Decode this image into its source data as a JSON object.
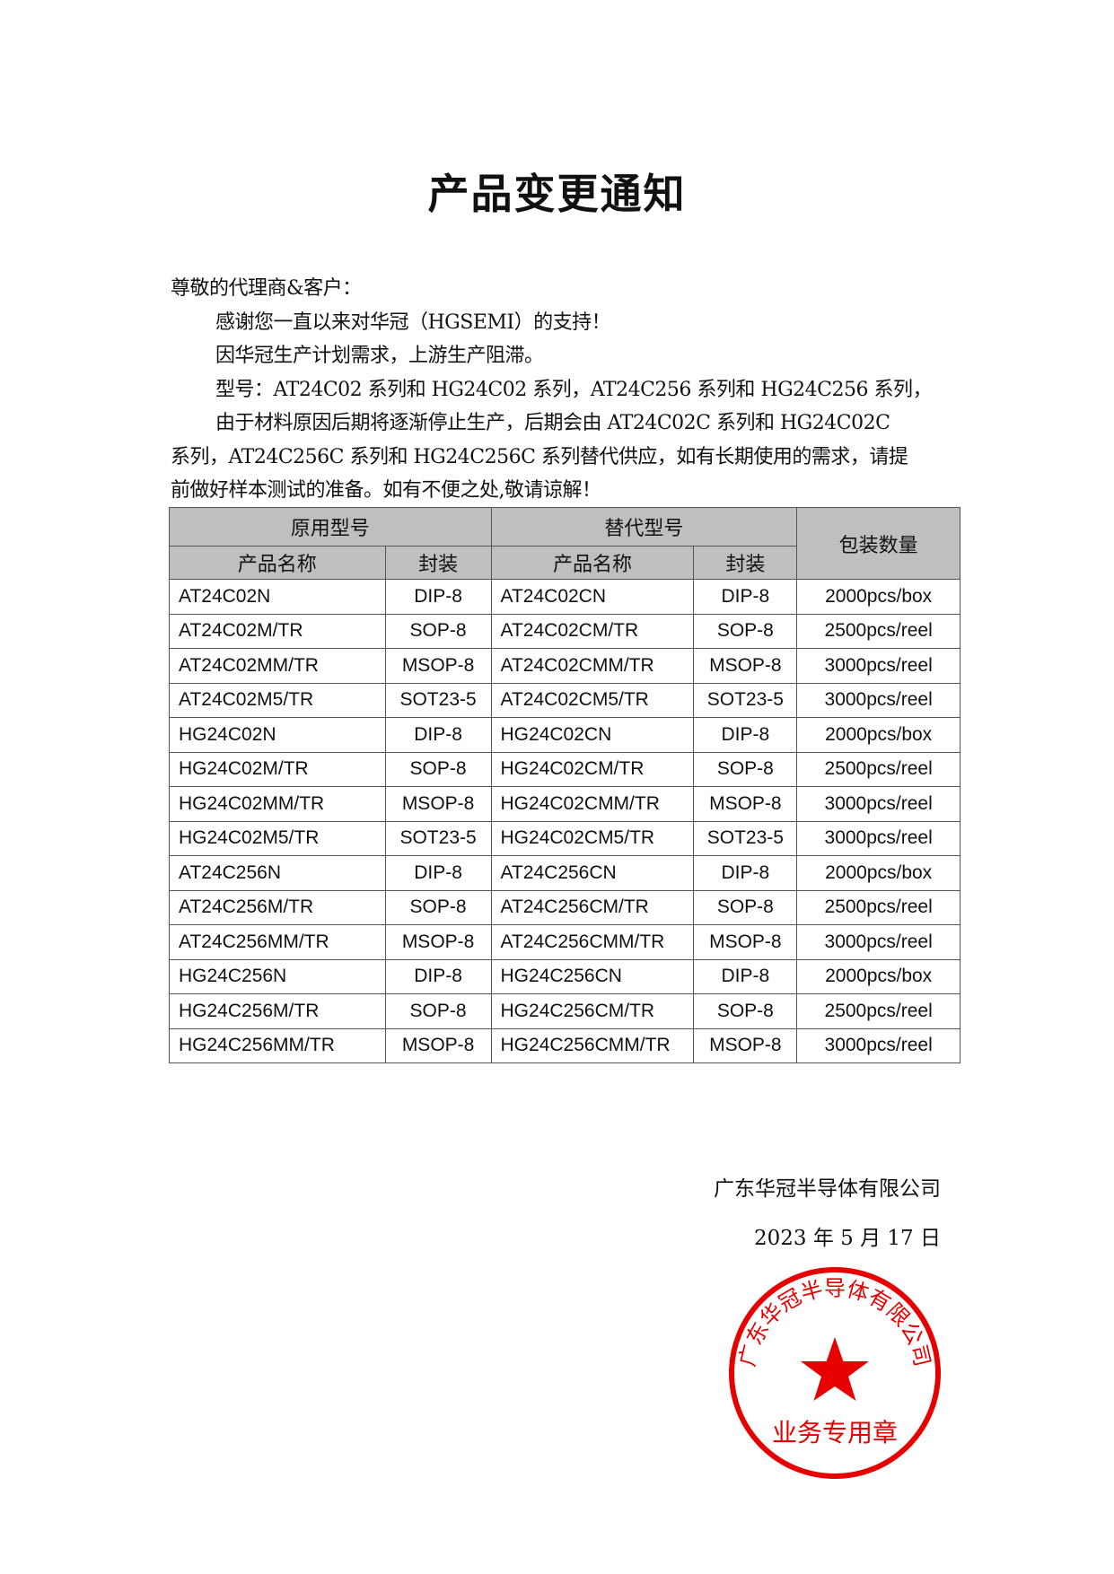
{
  "title": "产品变更通知",
  "body": {
    "greeting": "尊敬的代理商&客户：",
    "lines": [
      "感谢您一直以来对华冠（HGSEMI）的支持！",
      "因华冠生产计划需求，上游生产阻滞。",
      "型号：AT24C02 系列和 HG24C02 系列，AT24C256 系列和 HG24C256 系列，",
      "由于材料原因后期将逐渐停止生产，后期会由 AT24C02C 系列和 HG24C02C",
      "系列，AT24C256C 系列和 HG24C256C 系列替代供应，如有长期使用的需求，请提",
      "前做好样本测试的准备。如有不便之处,敬请谅解！"
    ]
  },
  "table": {
    "group_headers": [
      "原用型号",
      "替代型号",
      "包装数量"
    ],
    "sub_headers": [
      "产品名称",
      "封装",
      "产品名称",
      "封装"
    ],
    "rows": [
      [
        "AT24C02N",
        "DIP-8",
        "AT24C02CN",
        "DIP-8",
        "2000pcs/box"
      ],
      [
        "AT24C02M/TR",
        "SOP-8",
        "AT24C02CM/TR",
        "SOP-8",
        "2500pcs/reel"
      ],
      [
        "AT24C02MM/TR",
        "MSOP-8",
        "AT24C02CMM/TR",
        "MSOP-8",
        "3000pcs/reel"
      ],
      [
        "AT24C02M5/TR",
        "SOT23-5",
        "AT24C02CM5/TR",
        "SOT23-5",
        "3000pcs/reel"
      ],
      [
        "HG24C02N",
        "DIP-8",
        "HG24C02CN",
        "DIP-8",
        "2000pcs/box"
      ],
      [
        "HG24C02M/TR",
        "SOP-8",
        "HG24C02CM/TR",
        "SOP-8",
        "2500pcs/reel"
      ],
      [
        "HG24C02MM/TR",
        "MSOP-8",
        "HG24C02CMM/TR",
        "MSOP-8",
        "3000pcs/reel"
      ],
      [
        "HG24C02M5/TR",
        "SOT23-5",
        "HG24C02CM5/TR",
        "SOT23-5",
        "3000pcs/reel"
      ],
      [
        "AT24C256N",
        "DIP-8",
        "AT24C256CN",
        "DIP-8",
        "2000pcs/box"
      ],
      [
        "AT24C256M/TR",
        "SOP-8",
        "AT24C256CM/TR",
        "SOP-8",
        "2500pcs/reel"
      ],
      [
        "AT24C256MM/TR",
        "MSOP-8",
        "AT24C256CMM/TR",
        "MSOP-8",
        "3000pcs/reel"
      ],
      [
        "HG24C256N",
        "DIP-8",
        "HG24C256CN",
        "DIP-8",
        "2000pcs/box"
      ],
      [
        "HG24C256M/TR",
        "SOP-8",
        "HG24C256CM/TR",
        "SOP-8",
        "2500pcs/reel"
      ],
      [
        "HG24C256MM/TR",
        "MSOP-8",
        "HG24C256CMM/TR",
        "MSOP-8",
        "3000pcs/reel"
      ]
    ]
  },
  "signature": {
    "company": "广东华冠半导体有限公司",
    "date": "2023 年 5 月 17 日"
  },
  "stamp": {
    "arc_text": "广东华冠半导体有限公司",
    "bottom_text": "业务专用章",
    "color": "#e60000"
  }
}
